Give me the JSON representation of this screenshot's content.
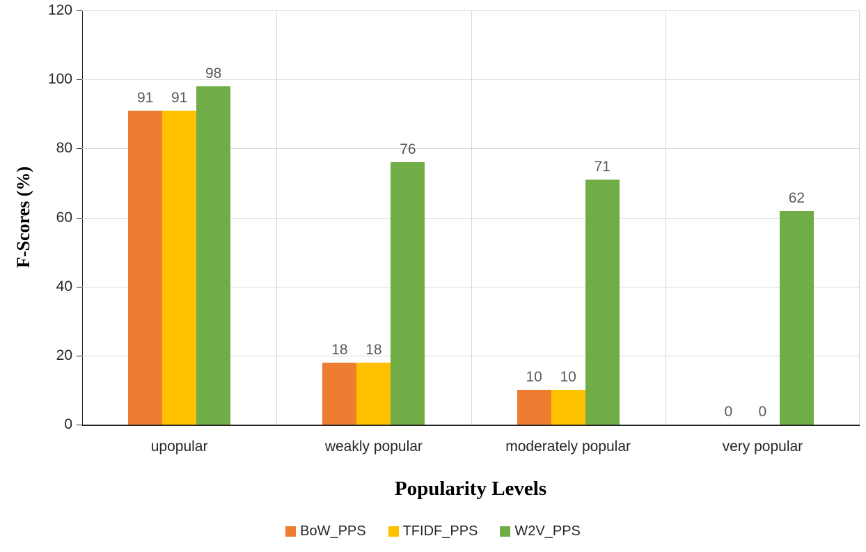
{
  "chart_data": {
    "type": "bar",
    "title": "",
    "xlabel": "Popularity Levels",
    "ylabel": "F-Scores (%)",
    "categories": [
      "upopular",
      "weakly popular",
      "moderately popular",
      "very popular"
    ],
    "series": [
      {
        "name": "BoW_PPS",
        "color": "#ED7D31",
        "values": [
          91,
          18,
          10,
          0
        ]
      },
      {
        "name": "TFIDF_PPS",
        "color": "#FFC000",
        "values": [
          91,
          18,
          10,
          0
        ]
      },
      {
        "name": "W2V_PPS",
        "color": "#70AD47",
        "values": [
          98,
          76,
          71,
          62
        ]
      }
    ],
    "ylim": [
      0,
      120
    ],
    "ytick_step": 20,
    "yticks": [
      0,
      20,
      40,
      60,
      80,
      100,
      120
    ],
    "grid": true,
    "legend_position": "bottom",
    "colors": {
      "grid": "#d9d9d9",
      "axis": "#262626",
      "data_label": "#595959",
      "tick_label": "#262626"
    }
  }
}
